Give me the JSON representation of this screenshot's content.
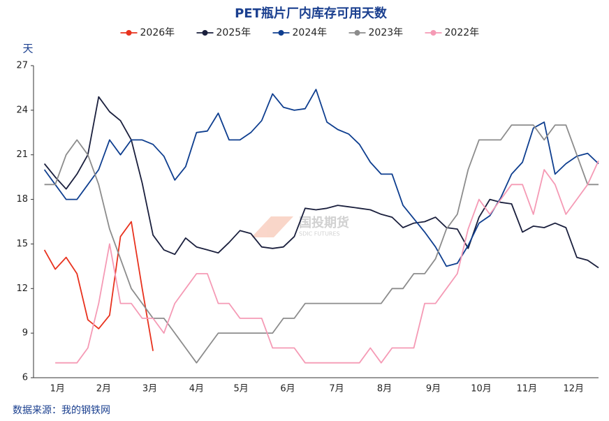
{
  "chart_data": {
    "type": "line",
    "title": "PET瓶片厂内库存可用天数",
    "y_label": "天",
    "source": "数据来源：我的钢铁网",
    "watermark": {
      "name": "国投期货",
      "sub": "SDIC FUTURES"
    },
    "x": [
      1,
      2,
      3,
      4,
      5,
      6,
      7,
      8,
      9,
      10,
      11,
      12,
      13,
      14,
      15,
      16,
      17,
      18,
      19,
      20,
      21,
      22,
      23,
      24,
      25,
      26,
      27,
      28,
      29,
      30,
      31,
      32,
      33,
      34,
      35,
      36,
      37,
      38,
      39,
      40,
      41,
      42,
      43,
      44,
      45,
      46,
      47,
      48,
      49,
      50,
      51,
      52
    ],
    "xlim": [
      0,
      52
    ],
    "xticks": [
      {
        "value": 2.2,
        "label": "1月"
      },
      {
        "value": 6.45,
        "label": "2月"
      },
      {
        "value": 10.7,
        "label": "3月"
      },
      {
        "value": 15.0,
        "label": "4月"
      },
      {
        "value": 19.1,
        "label": "5月"
      },
      {
        "value": 23.4,
        "label": "6月"
      },
      {
        "value": 27.9,
        "label": "7月"
      },
      {
        "value": 32.3,
        "label": "8月"
      },
      {
        "value": 36.8,
        "label": "9月"
      },
      {
        "value": 41.2,
        "label": "10月"
      },
      {
        "value": 45.4,
        "label": "11月"
      },
      {
        "value": 49.7,
        "label": "12月"
      }
    ],
    "ylim": [
      6,
      27
    ],
    "yticks": [
      6,
      9,
      12,
      15,
      18,
      21,
      24,
      27
    ],
    "legend": "top",
    "series": [
      {
        "name": "2026年",
        "color": "#e8321e",
        "values": [
          14.6,
          13.3,
          14.1,
          13,
          9.9,
          9.3,
          10.2,
          15.5,
          16.5,
          12,
          7.8,
          null,
          null,
          null,
          null,
          null,
          null,
          null,
          null,
          null,
          null,
          null,
          null,
          null,
          null,
          null,
          null,
          null,
          null,
          null,
          null,
          null,
          null,
          null,
          null,
          null,
          null,
          null,
          null,
          null,
          null,
          null,
          null,
          null,
          null,
          null,
          null,
          null,
          null,
          null,
          null,
          null
        ]
      },
      {
        "name": "2025年",
        "color": "#1a1f3d",
        "values": [
          20.4,
          19.5,
          18.7,
          19.7,
          21,
          24.9,
          23.9,
          23.3,
          22,
          19.1,
          15.6,
          14.6,
          14.3,
          15.4,
          14.8,
          14.6,
          14.4,
          15.1,
          15.9,
          15.7,
          14.8,
          14.7,
          14.8,
          15.5,
          17.4,
          17.3,
          17.4,
          17.6,
          17.5,
          17.4,
          17.3,
          17,
          16.8,
          16.1,
          16.4,
          16.5,
          16.8,
          16.1,
          16,
          14.7,
          16.8,
          18,
          17.8,
          17.7,
          15.8,
          16.2,
          16.1,
          16.4,
          16.1,
          14.1,
          13.9,
          13.4
        ]
      },
      {
        "name": "2024年",
        "color": "#0e3e8f",
        "values": [
          20,
          19,
          18,
          18,
          19,
          20,
          22,
          21,
          22,
          22,
          21.7,
          20.9,
          19.3,
          20.2,
          22.5,
          22.6,
          23.8,
          22,
          22,
          22.5,
          23.3,
          25.1,
          24.2,
          24,
          24.1,
          25.4,
          23.2,
          22.7,
          22.4,
          21.7,
          20.5,
          19.7,
          19.7,
          17.6,
          16.7,
          15.8,
          14.8,
          13.5,
          13.7,
          14.9,
          16.4,
          16.9,
          18.1,
          19.7,
          20.5,
          22.8,
          23.2,
          19.7,
          20.4,
          20.9,
          21.1,
          20.4
        ]
      },
      {
        "name": "2023年",
        "color": "#8c8c8c",
        "values": [
          19,
          19,
          21,
          22,
          21,
          19,
          16,
          14,
          12,
          11,
          10,
          10,
          9,
          8,
          7,
          8,
          9,
          9,
          9,
          9,
          9,
          9,
          10,
          10,
          11,
          11,
          11,
          11,
          11,
          11,
          11,
          11,
          12,
          12,
          13,
          13,
          14,
          16,
          17,
          20,
          22,
          22,
          22,
          23,
          23,
          23,
          22,
          23,
          23,
          21,
          19,
          19
        ]
      },
      {
        "name": "2022年",
        "color": "#f59ab5",
        "values": [
          null,
          7,
          7,
          7,
          8,
          11,
          15,
          11,
          11,
          10,
          10,
          9,
          11,
          12,
          13,
          13,
          11,
          11,
          10,
          10,
          10,
          8,
          8,
          8,
          7,
          7,
          7,
          7,
          7,
          7,
          8,
          7,
          8,
          8,
          8,
          11,
          11,
          12,
          13,
          16,
          18,
          17,
          18,
          19,
          19,
          17,
          20,
          19,
          17,
          18,
          19,
          20.6
        ]
      }
    ]
  }
}
